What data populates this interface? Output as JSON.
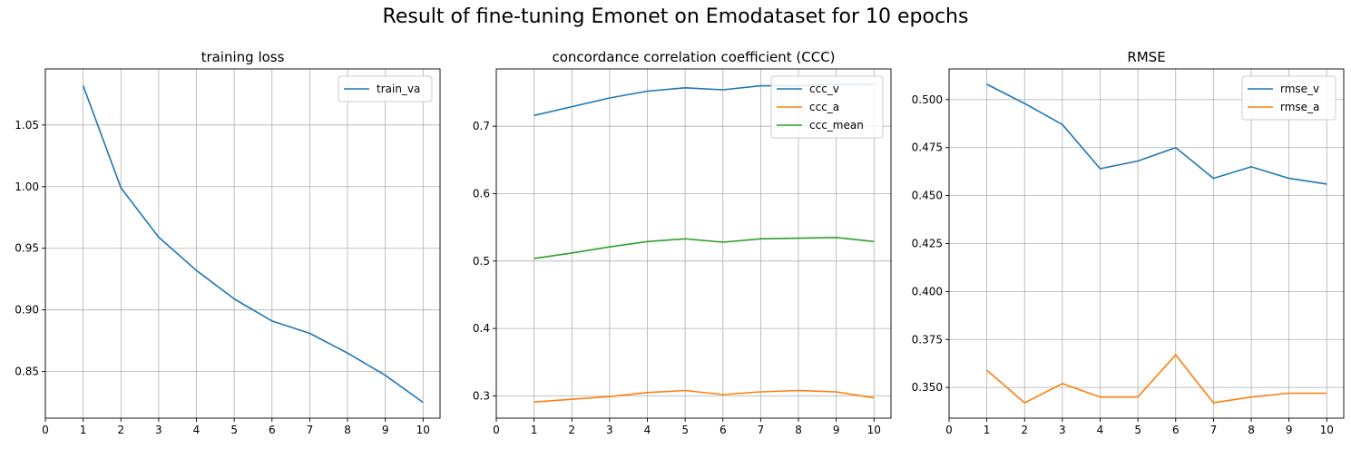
{
  "figure": {
    "suptitle": "Result of fine-tuning Emonet on Emodataset for 10 epochs"
  },
  "chart_data": [
    {
      "type": "line",
      "title": "training loss",
      "xlabel": "",
      "ylabel": "",
      "x": [
        1,
        2,
        3,
        4,
        5,
        6,
        7,
        8,
        9,
        10
      ],
      "xticks": [
        0,
        1,
        2,
        3,
        4,
        5,
        6,
        7,
        8,
        9,
        10
      ],
      "xlim": [
        0,
        10.45
      ],
      "ylim": [
        0.8122,
        1.0955
      ],
      "yticks": [
        0.85,
        0.9,
        0.95,
        1.0,
        1.05
      ],
      "ytick_labels": [
        "0.85",
        "0.90",
        "0.95",
        "1.00",
        "1.05"
      ],
      "grid": true,
      "legend_position": "upper right",
      "series": [
        {
          "name": "train_va",
          "color": "#1f77b4",
          "values": [
            1.082,
            0.999,
            0.959,
            0.932,
            0.909,
            0.891,
            0.881,
            0.865,
            0.847,
            0.825
          ]
        }
      ]
    },
    {
      "type": "line",
      "title": "concordance correlation coefficient (CCC)",
      "xlabel": "",
      "ylabel": "",
      "x": [
        1,
        2,
        3,
        4,
        5,
        6,
        7,
        8,
        9,
        10
      ],
      "xticks": [
        0,
        1,
        2,
        3,
        4,
        5,
        6,
        7,
        8,
        9,
        10
      ],
      "xlim": [
        0,
        10.45
      ],
      "ylim": [
        0.267,
        0.785
      ],
      "yticks": [
        0.3,
        0.4,
        0.5,
        0.6,
        0.7
      ],
      "ytick_labels": [
        "0.3",
        "0.4",
        "0.5",
        "0.6",
        "0.7"
      ],
      "grid": true,
      "legend_position": "upper right",
      "series": [
        {
          "name": "ccc_v",
          "color": "#1f77b4",
          "values": [
            0.716,
            0.729,
            0.742,
            0.752,
            0.757,
            0.754,
            0.76,
            0.76,
            0.762,
            0.762
          ]
        },
        {
          "name": "ccc_a",
          "color": "#ff7f0e",
          "values": [
            0.291,
            0.295,
            0.299,
            0.305,
            0.308,
            0.302,
            0.306,
            0.308,
            0.306,
            0.297
          ]
        },
        {
          "name": "ccc_mean",
          "color": "#2ca02c",
          "values": [
            0.504,
            0.512,
            0.521,
            0.529,
            0.533,
            0.528,
            0.533,
            0.534,
            0.535,
            0.529
          ]
        }
      ]
    },
    {
      "type": "line",
      "title": "RMSE",
      "xlabel": "",
      "ylabel": "",
      "x": [
        1,
        2,
        3,
        4,
        5,
        6,
        7,
        8,
        9,
        10
      ],
      "xticks": [
        0,
        1,
        2,
        3,
        4,
        5,
        6,
        7,
        8,
        9,
        10
      ],
      "xlim": [
        0,
        10.45
      ],
      "ylim": [
        0.334,
        0.516
      ],
      "yticks": [
        0.35,
        0.375,
        0.4,
        0.425,
        0.45,
        0.475,
        0.5
      ],
      "ytick_labels": [
        "0.350",
        "0.375",
        "0.400",
        "0.425",
        "0.450",
        "0.475",
        "0.500"
      ],
      "grid": true,
      "legend_position": "upper right",
      "series": [
        {
          "name": "rmse_v",
          "color": "#1f77b4",
          "values": [
            0.508,
            0.498,
            0.487,
            0.464,
            0.468,
            0.475,
            0.459,
            0.465,
            0.459,
            0.456
          ]
        },
        {
          "name": "rmse_a",
          "color": "#ff7f0e",
          "values": [
            0.359,
            0.342,
            0.352,
            0.345,
            0.345,
            0.367,
            0.342,
            0.345,
            0.347,
            0.347
          ]
        }
      ]
    }
  ]
}
